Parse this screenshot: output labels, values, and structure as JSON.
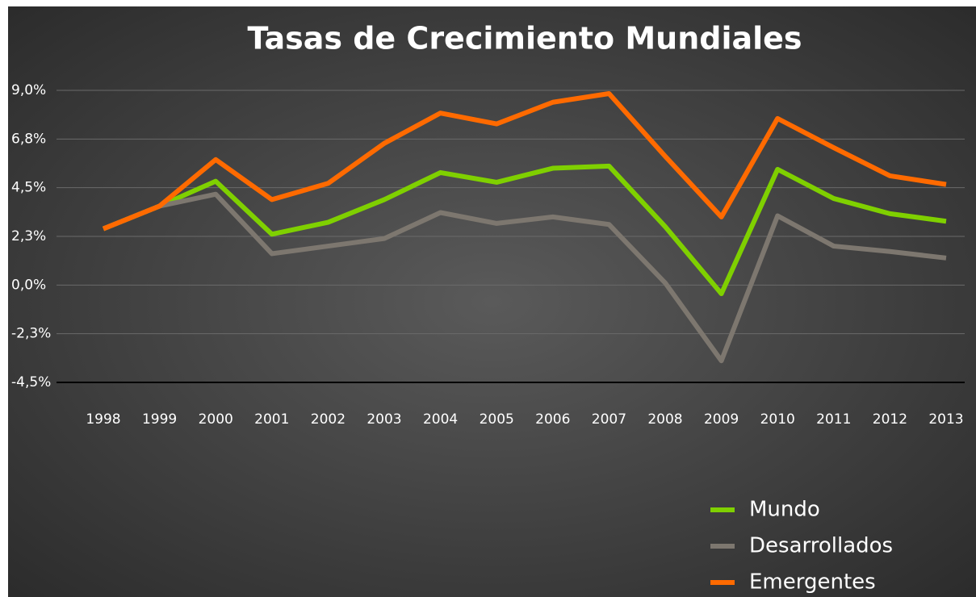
{
  "chart_data": {
    "type": "line",
    "title": "Tasas de Crecimiento Mundiales",
    "categories": [
      "1998",
      "1999",
      "2000",
      "2001",
      "2002",
      "2003",
      "2004",
      "2005",
      "2006",
      "2007",
      "2008",
      "2009",
      "2010",
      "2011",
      "2012",
      "2013"
    ],
    "series": [
      {
        "name": "Mundo",
        "color": "#7fd000",
        "values": [
          2.6,
          3.65,
          4.8,
          2.35,
          2.9,
          3.95,
          5.2,
          4.75,
          5.4,
          5.5,
          2.7,
          -0.4,
          5.35,
          4.0,
          3.3,
          2.95
        ]
      },
      {
        "name": "Desarrollados",
        "color": "#7d776f",
        "values": [
          2.6,
          3.65,
          4.2,
          1.45,
          1.8,
          2.15,
          3.35,
          2.85,
          3.15,
          2.8,
          0.1,
          -3.5,
          3.2,
          1.8,
          1.55,
          1.25
        ]
      },
      {
        "name": "Emergentes",
        "color": "#ff6a00",
        "values": [
          2.6,
          3.65,
          5.8,
          3.95,
          4.7,
          6.55,
          7.95,
          7.45,
          8.45,
          8.85,
          5.95,
          3.15,
          7.7,
          6.35,
          5.05,
          4.65
        ]
      }
    ],
    "ylim": [
      -4.5,
      9
    ],
    "yticks": [
      {
        "value": -4.5,
        "label": "-4,5%"
      },
      {
        "value": -2.25,
        "label": "-2,3%"
      },
      {
        "value": 0,
        "label": "0,0%"
      },
      {
        "value": 2.25,
        "label": "2,3%"
      },
      {
        "value": 4.5,
        "label": "4,5%"
      },
      {
        "value": 6.75,
        "label": "6,8%"
      },
      {
        "value": 9,
        "label": "9,0%"
      }
    ],
    "grid": true,
    "legend": "bottom-right"
  }
}
